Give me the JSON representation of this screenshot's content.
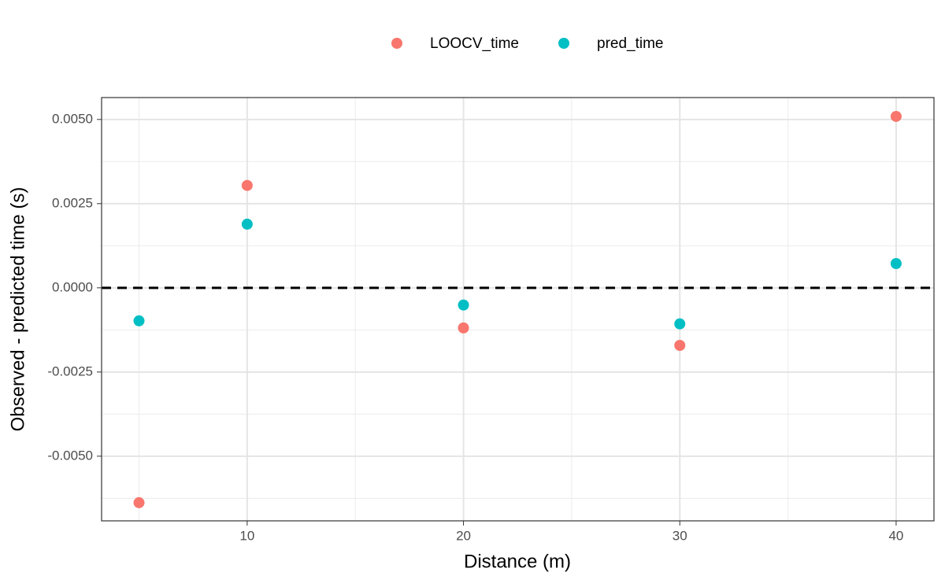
{
  "chart_data": {
    "type": "scatter",
    "x_label": "Distance (m)",
    "y_label": "Observed - predicted time (s)",
    "series": [
      {
        "name": "LOOCV_time",
        "color": "#F8766D",
        "x": [
          5,
          10,
          20,
          30,
          40
        ],
        "values": [
          -0.00638,
          0.00304,
          -0.00119,
          -0.00171,
          0.00509
        ]
      },
      {
        "name": "pred_time",
        "color": "#00BFC4",
        "x": [
          5,
          10,
          20,
          30,
          40
        ],
        "values": [
          -0.00098,
          0.00189,
          -0.00051,
          -0.00107,
          0.00072
        ]
      }
    ],
    "xlim": [
      3.27,
      41.75
    ],
    "ylim": [
      -0.00692,
      0.00565
    ],
    "xticks": [
      10,
      20,
      30,
      40
    ],
    "yticks": [
      {
        "value": -0.005,
        "label": "-0.0050"
      },
      {
        "value": -0.0025,
        "label": "-0.0025"
      },
      {
        "value": 0,
        "label": "0.0000"
      },
      {
        "value": 0.0025,
        "label": "0.0025"
      },
      {
        "value": 0.005,
        "label": "0.0050"
      }
    ],
    "x_minor_grid": [
      5,
      15,
      25,
      35
    ],
    "y_minor_grid": [
      -0.00625,
      -0.00375,
      -0.00125,
      0.00125,
      0.00375
    ],
    "hline": 0,
    "grid": true,
    "legend": "top"
  }
}
